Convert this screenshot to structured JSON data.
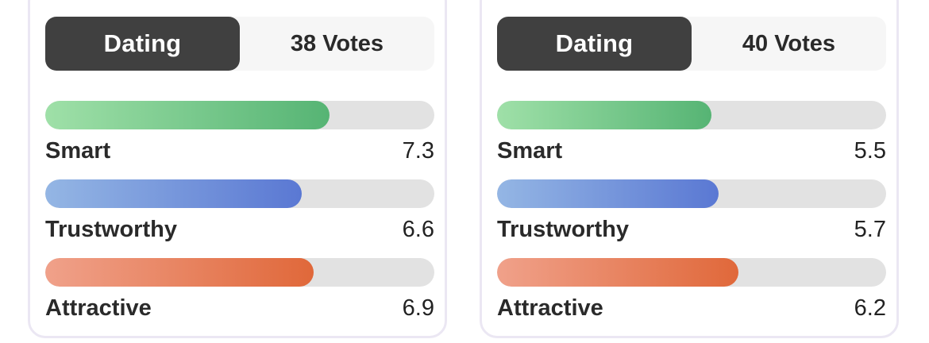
{
  "cards": [
    {
      "tab_label": "Dating",
      "votes_label": "38 Votes",
      "metrics": [
        {
          "label": "Smart",
          "value": "7.3",
          "fraction": 0.73,
          "color": "#56b474"
        },
        {
          "label": "Trustworthy",
          "value": "6.6",
          "fraction": 0.66,
          "color": "#5a78d3"
        },
        {
          "label": "Attractive",
          "value": "6.9",
          "fraction": 0.69,
          "color": "#e0683a"
        }
      ]
    },
    {
      "tab_label": "Dating",
      "votes_label": "40 Votes",
      "metrics": [
        {
          "label": "Smart",
          "value": "5.5",
          "fraction": 0.55,
          "color": "#56b474"
        },
        {
          "label": "Trustworthy",
          "value": "5.7",
          "fraction": 0.57,
          "color": "#5a78d3"
        },
        {
          "label": "Attractive",
          "value": "6.2",
          "fraction": 0.62,
          "color": "#e0683a"
        }
      ]
    }
  ]
}
